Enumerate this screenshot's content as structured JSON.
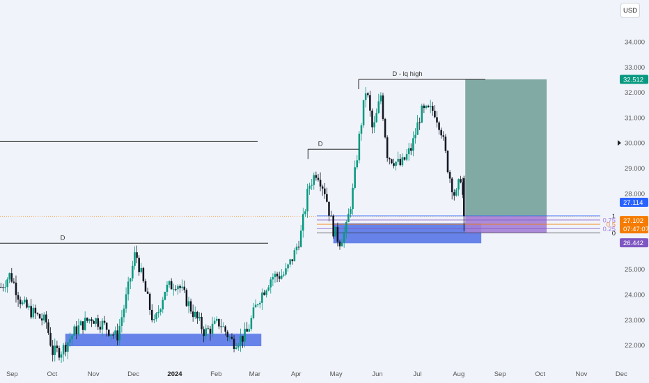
{
  "currency_button": "USD",
  "colors": {
    "background": "#f0f3fa",
    "up": "#089981",
    "down": "#131722",
    "demand_zone": "#5877e8",
    "target_zone": "#6f9c94",
    "stop_zone": "#a47fd6",
    "tag_target": "#089981",
    "tag_blue": "#2962ff",
    "tag_orange": "#f57c00",
    "tag_purple": "#7e57c2"
  },
  "chart_data": {
    "type": "candlestick",
    "x_ticks": [
      "Sep",
      "Oct",
      "Nov",
      "Dec",
      "2024",
      "Feb",
      "Mar",
      "Apr",
      "May",
      "Jun",
      "Jul",
      "Aug",
      "Sep",
      "Oct",
      "Nov",
      "Dec"
    ],
    "y_ticks": [
      "34.000",
      "33.000",
      "32.000",
      "31.000",
      "30.000",
      "29.000",
      "28.000",
      "27.000",
      "26.000",
      "25.000",
      "24.000",
      "23.000",
      "22.000"
    ],
    "ylim": [
      21.6,
      35.3
    ],
    "price_path": [
      [
        "2023-08-25",
        24.3
      ],
      [
        "2023-09-01",
        24.8
      ],
      [
        "2023-09-10",
        23.6
      ],
      [
        "2023-09-20",
        23.2
      ],
      [
        "2023-09-28",
        22.9
      ],
      [
        "2023-10-03",
        21.7
      ],
      [
        "2023-10-10",
        21.8
      ],
      [
        "2023-10-20",
        22.6
      ],
      [
        "2023-11-01",
        23.1
      ],
      [
        "2023-11-10",
        22.8
      ],
      [
        "2023-11-20",
        22.3
      ],
      [
        "2023-11-28",
        24.1
      ],
      [
        "2023-12-04",
        25.7
      ],
      [
        "2023-12-10",
        24.4
      ],
      [
        "2023-12-18",
        22.8
      ],
      [
        "2023-12-26",
        24.2
      ],
      [
        "2024-01-04",
        24.5
      ],
      [
        "2024-01-15",
        23.4
      ],
      [
        "2024-01-25",
        22.5
      ],
      [
        "2024-02-05",
        22.9
      ],
      [
        "2024-02-15",
        22.1
      ],
      [
        "2024-02-25",
        22.4
      ],
      [
        "2024-03-05",
        23.8
      ],
      [
        "2024-03-15",
        24.7
      ],
      [
        "2024-03-25",
        24.8
      ],
      [
        "2024-04-01",
        25.6
      ],
      [
        "2024-04-06",
        26.4
      ],
      [
        "2024-04-12",
        28.3
      ],
      [
        "2024-04-18",
        28.9
      ],
      [
        "2024-04-24",
        28.1
      ],
      [
        "2024-04-30",
        26.6
      ],
      [
        "2024-05-05",
        26.1
      ],
      [
        "2024-05-10",
        26.6
      ],
      [
        "2024-05-15",
        28.1
      ],
      [
        "2024-05-20",
        30.3
      ],
      [
        "2024-05-25",
        32.2
      ],
      [
        "2024-05-30",
        30.4
      ],
      [
        "2024-06-05",
        31.9
      ],
      [
        "2024-06-10",
        29.5
      ],
      [
        "2024-06-20",
        29.1
      ],
      [
        "2024-06-28",
        29.8
      ],
      [
        "2024-07-05",
        31.2
      ],
      [
        "2024-07-15",
        31.3
      ],
      [
        "2024-07-20",
        30.6
      ],
      [
        "2024-07-26",
        28.8
      ],
      [
        "2024-07-31",
        27.8
      ],
      [
        "2024-08-04",
        28.7
      ],
      [
        "2024-08-07",
        27.1
      ]
    ],
    "annotations": [
      {
        "label": "D - lq high",
        "price": 32.512
      },
      {
        "label": "D",
        "price": 29.75
      },
      {
        "label": "D",
        "price": 26.03
      }
    ],
    "levels": [
      {
        "price": 30.05
      },
      {
        "price": 27.05
      }
    ],
    "fib_labels": [
      {
        "text": "1",
        "price": 27.114
      },
      {
        "text": "0.75",
        "price": 26.95
      },
      {
        "text": "0.5",
        "price": 26.78
      },
      {
        "text": "0.25",
        "price": 26.61
      },
      {
        "text": "0",
        "price": 26.442
      }
    ],
    "zones": [
      {
        "type": "demand",
        "from": "2024-05-01",
        "to": "2024-08-20",
        "low": 26.03,
        "high": 26.82
      },
      {
        "type": "demand",
        "from": "2023-10-13",
        "to": "2024-03-08",
        "low": 21.96,
        "high": 22.45
      },
      {
        "type": "target",
        "from": "2024-08-08",
        "to": "2024-10-08",
        "low": 27.114,
        "high": 32.512
      },
      {
        "type": "stop",
        "from": "2024-08-08",
        "to": "2024-10-08",
        "low": 26.442,
        "high": 27.114
      }
    ],
    "price_tags": [
      {
        "value": "32.512",
        "kind": "target"
      },
      {
        "value": "27.114",
        "kind": "blue"
      },
      {
        "value": "27.102",
        "kind": "orange",
        "countdown": "07:47:07"
      },
      {
        "value": "26.442",
        "kind": "purple"
      }
    ],
    "current_price": 27.102,
    "crosshair_price": 30.0
  }
}
